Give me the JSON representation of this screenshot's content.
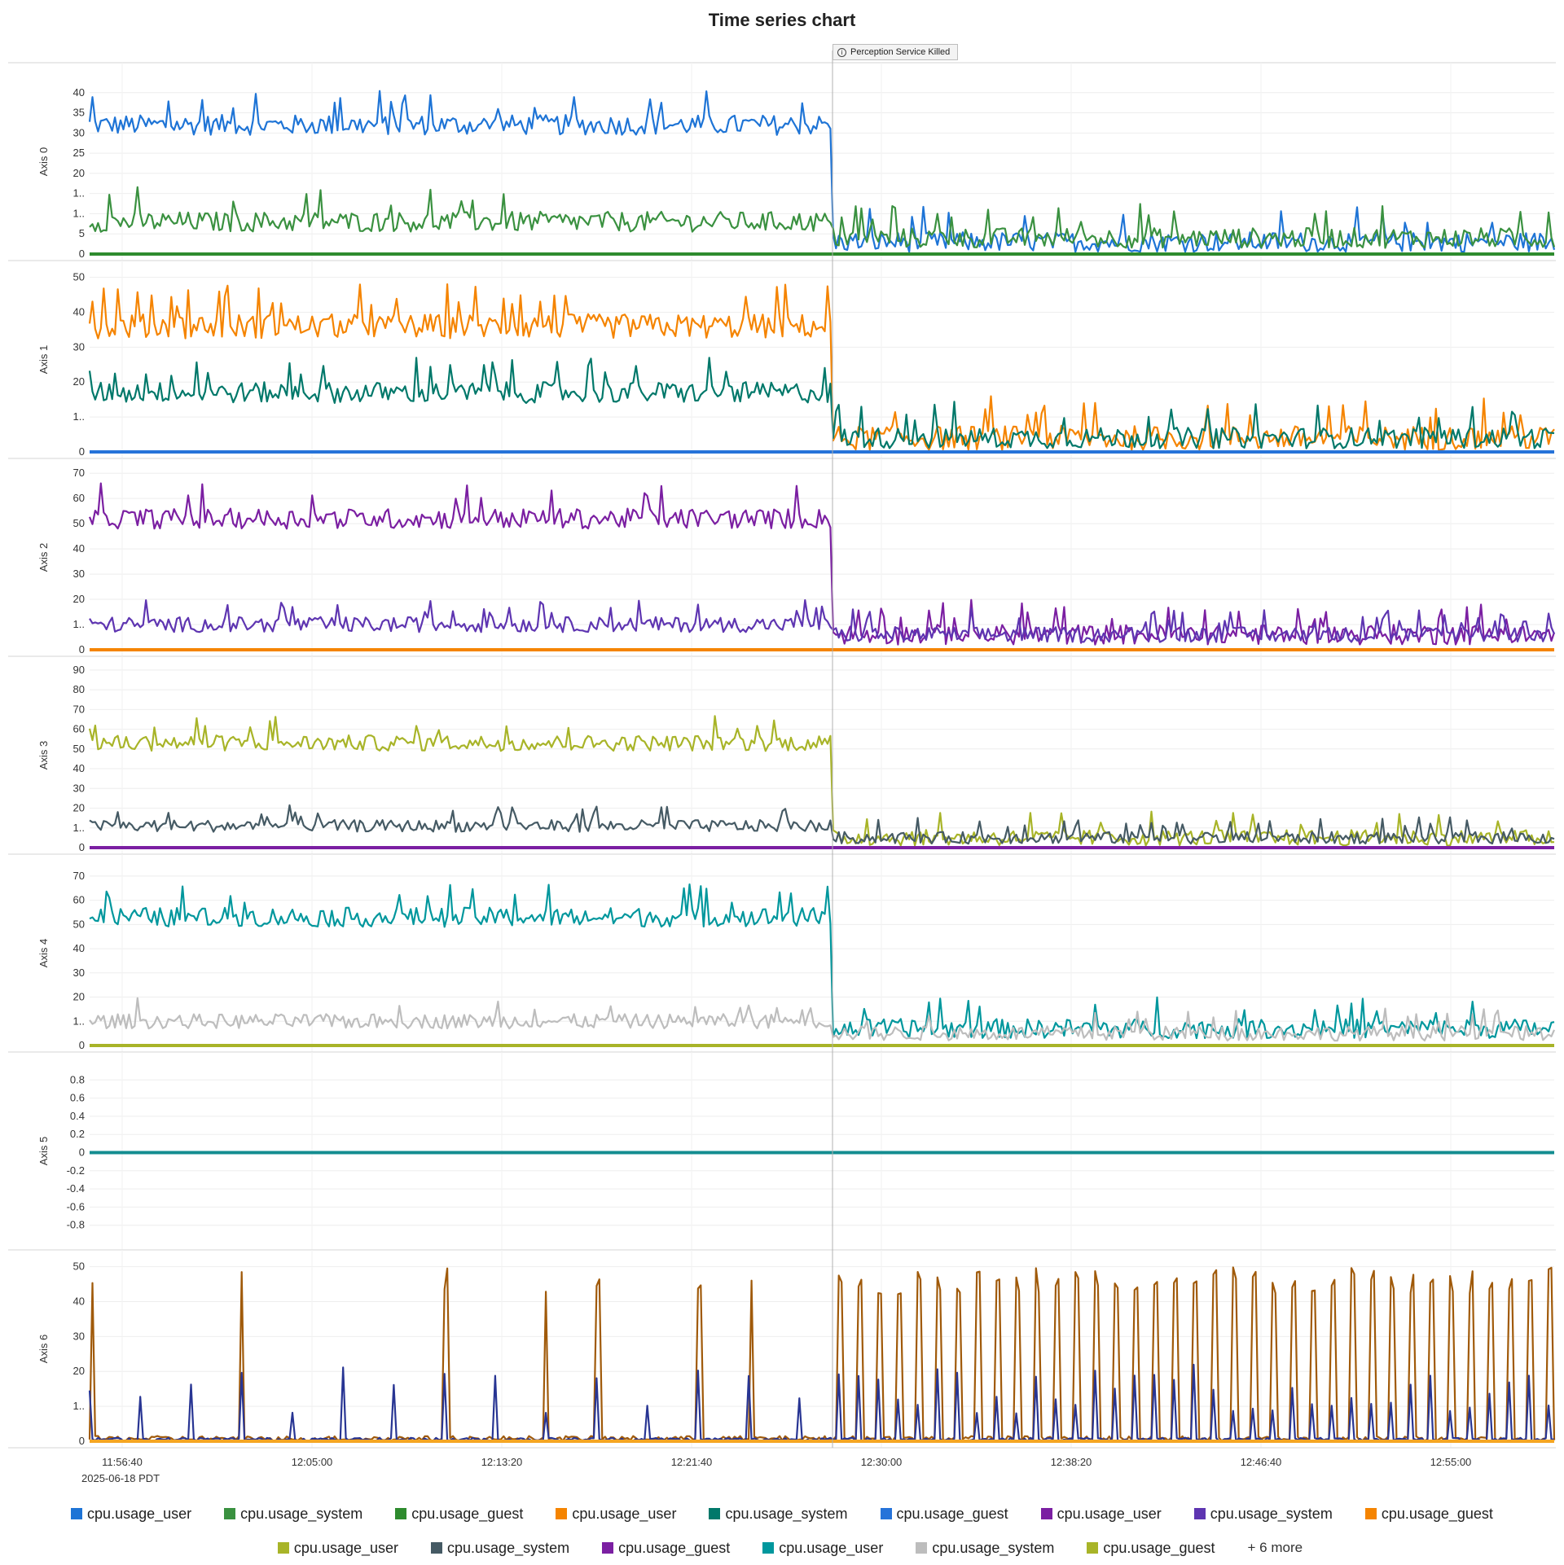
{
  "chart_data": {
    "type": "line",
    "title": "Time series chart",
    "x_tick_labels": [
      "11:56:40",
      "12:05:00",
      "12:13:20",
      "12:21:40",
      "12:30:00",
      "12:38:20",
      "12:46:40",
      "12:55:00"
    ],
    "x_sub_label": "2025-06-18 PDT",
    "x_range": [
      "11:56:00",
      "12:58:10"
    ],
    "event_marker": {
      "time": "12:28:30",
      "label": "Perception Service Killed"
    },
    "panels": [
      {
        "label": "Axis 0",
        "ylim": [
          0,
          45
        ],
        "ticks": [
          "0",
          "5",
          "1..",
          "1..",
          "20",
          "25",
          "30",
          "35",
          "40"
        ],
        "tick_values": [
          0,
          5,
          10,
          15,
          20,
          25,
          30,
          35,
          40
        ],
        "series": [
          {
            "color": "#1e74d6",
            "before": 32,
            "after": 3,
            "noise": 2.5
          },
          {
            "color": "#3a9140",
            "before": 8,
            "after": 4,
            "noise": 2.5
          },
          {
            "color": "#2e8b2e",
            "before": 0,
            "after": 0,
            "noise": 0
          }
        ]
      },
      {
        "label": "Axis 1",
        "ylim": [
          0,
          52
        ],
        "ticks": [
          "0",
          "1..",
          "20",
          "30",
          "40",
          "50"
        ],
        "tick_values": [
          0,
          10,
          20,
          30,
          40,
          50
        ],
        "series": [
          {
            "color": "#f58400",
            "before": 36,
            "after": 4,
            "noise": 3.5
          },
          {
            "color": "#00786a",
            "before": 17,
            "after": 4,
            "noise": 3
          },
          {
            "color": "#2673d9",
            "before": 0,
            "after": 0,
            "noise": 0
          }
        ]
      },
      {
        "label": "Axis 2",
        "ylim": [
          0,
          72
        ],
        "ticks": [
          "0",
          "1..",
          "20",
          "30",
          "40",
          "50",
          "60",
          "70"
        ],
        "tick_values": [
          0,
          10,
          20,
          30,
          40,
          50,
          60,
          70
        ],
        "series": [
          {
            "color": "#7b1fa2",
            "before": 52,
            "after": 6,
            "noise": 4
          },
          {
            "color": "#5e35b1",
            "before": 10,
            "after": 6,
            "noise": 3
          },
          {
            "color": "#f58400",
            "before": 0,
            "after": 0,
            "noise": 0
          }
        ]
      },
      {
        "label": "Axis 3",
        "ylim": [
          0,
          92
        ],
        "ticks": [
          "0",
          "1..",
          "20",
          "30",
          "40",
          "50",
          "60",
          "70",
          "80",
          "90"
        ],
        "tick_values": [
          0,
          10,
          20,
          30,
          40,
          50,
          60,
          70,
          80,
          90
        ],
        "series": [
          {
            "color": "#a8b428",
            "before": 53,
            "after": 5,
            "noise": 4
          },
          {
            "color": "#455a64",
            "before": 11,
            "after": 5,
            "noise": 3
          },
          {
            "color": "#7b1fa2",
            "before": 0,
            "after": 0,
            "noise": 0
          }
        ]
      },
      {
        "label": "Axis 4",
        "ylim": [
          0,
          75
        ],
        "ticks": [
          "0",
          "1..",
          "20",
          "30",
          "40",
          "50",
          "60",
          "70"
        ],
        "tick_values": [
          0,
          10,
          20,
          30,
          40,
          50,
          60,
          70
        ],
        "series": [
          {
            "color": "#00979d",
            "before": 53,
            "after": 7,
            "noise": 4
          },
          {
            "color": "#bdbdbd",
            "before": 10,
            "after": 5,
            "noise": 3
          },
          {
            "color": "#a8b428",
            "before": 0,
            "after": 0,
            "noise": 0
          }
        ]
      },
      {
        "label": "Axis 5",
        "ylim": [
          -1,
          1
        ],
        "ticks": [
          "-0.8",
          "-0.6",
          "-0.4",
          "-0.2",
          "0",
          "0.2",
          "0.4",
          "0.6",
          "0.8"
        ],
        "tick_values": [
          -0.8,
          -0.6,
          -0.4,
          -0.2,
          0,
          0.2,
          0.4,
          0.6,
          0.8
        ],
        "series": [
          {
            "color": "#138d90",
            "before": 0,
            "after": 0,
            "noise": 0
          }
        ]
      },
      {
        "label": "Axis 6",
        "ylim": [
          0,
          52
        ],
        "ticks": [
          "0",
          "1..",
          "20",
          "30",
          "40",
          "50"
        ],
        "tick_values": [
          0,
          10,
          20,
          30,
          40,
          50
        ],
        "series": [
          {
            "color": "#a05a0a",
            "spiky": true
          },
          {
            "color": "#283593",
            "spiky_small": true
          },
          {
            "color": "#f5a623",
            "before": 0,
            "after": 0,
            "noise": 0
          }
        ]
      }
    ]
  },
  "legend": {
    "row1": [
      {
        "label": "cpu.usage_user",
        "color": "#1e74d6"
      },
      {
        "label": "cpu.usage_system",
        "color": "#3a9140"
      },
      {
        "label": "cpu.usage_guest",
        "color": "#2e8b2e"
      },
      {
        "label": "cpu.usage_user",
        "color": "#f58400"
      },
      {
        "label": "cpu.usage_system",
        "color": "#00786a"
      },
      {
        "label": "cpu.usage_guest",
        "color": "#2673d9"
      },
      {
        "label": "cpu.usage_user",
        "color": "#7b1fa2"
      },
      {
        "label": "cpu.usage_system",
        "color": "#5e35b1"
      },
      {
        "label": "cpu.usage_guest",
        "color": "#f58400"
      }
    ],
    "row2": [
      {
        "label": "cpu.usage_user",
        "color": "#a8b428"
      },
      {
        "label": "cpu.usage_system",
        "color": "#455a64"
      },
      {
        "label": "cpu.usage_guest",
        "color": "#7b1fa2"
      },
      {
        "label": "cpu.usage_user",
        "color": "#00979d"
      },
      {
        "label": "cpu.usage_system",
        "color": "#bdbdbd"
      },
      {
        "label": "cpu.usage_guest",
        "color": "#a8b428"
      }
    ],
    "more": "+ 6 more"
  }
}
